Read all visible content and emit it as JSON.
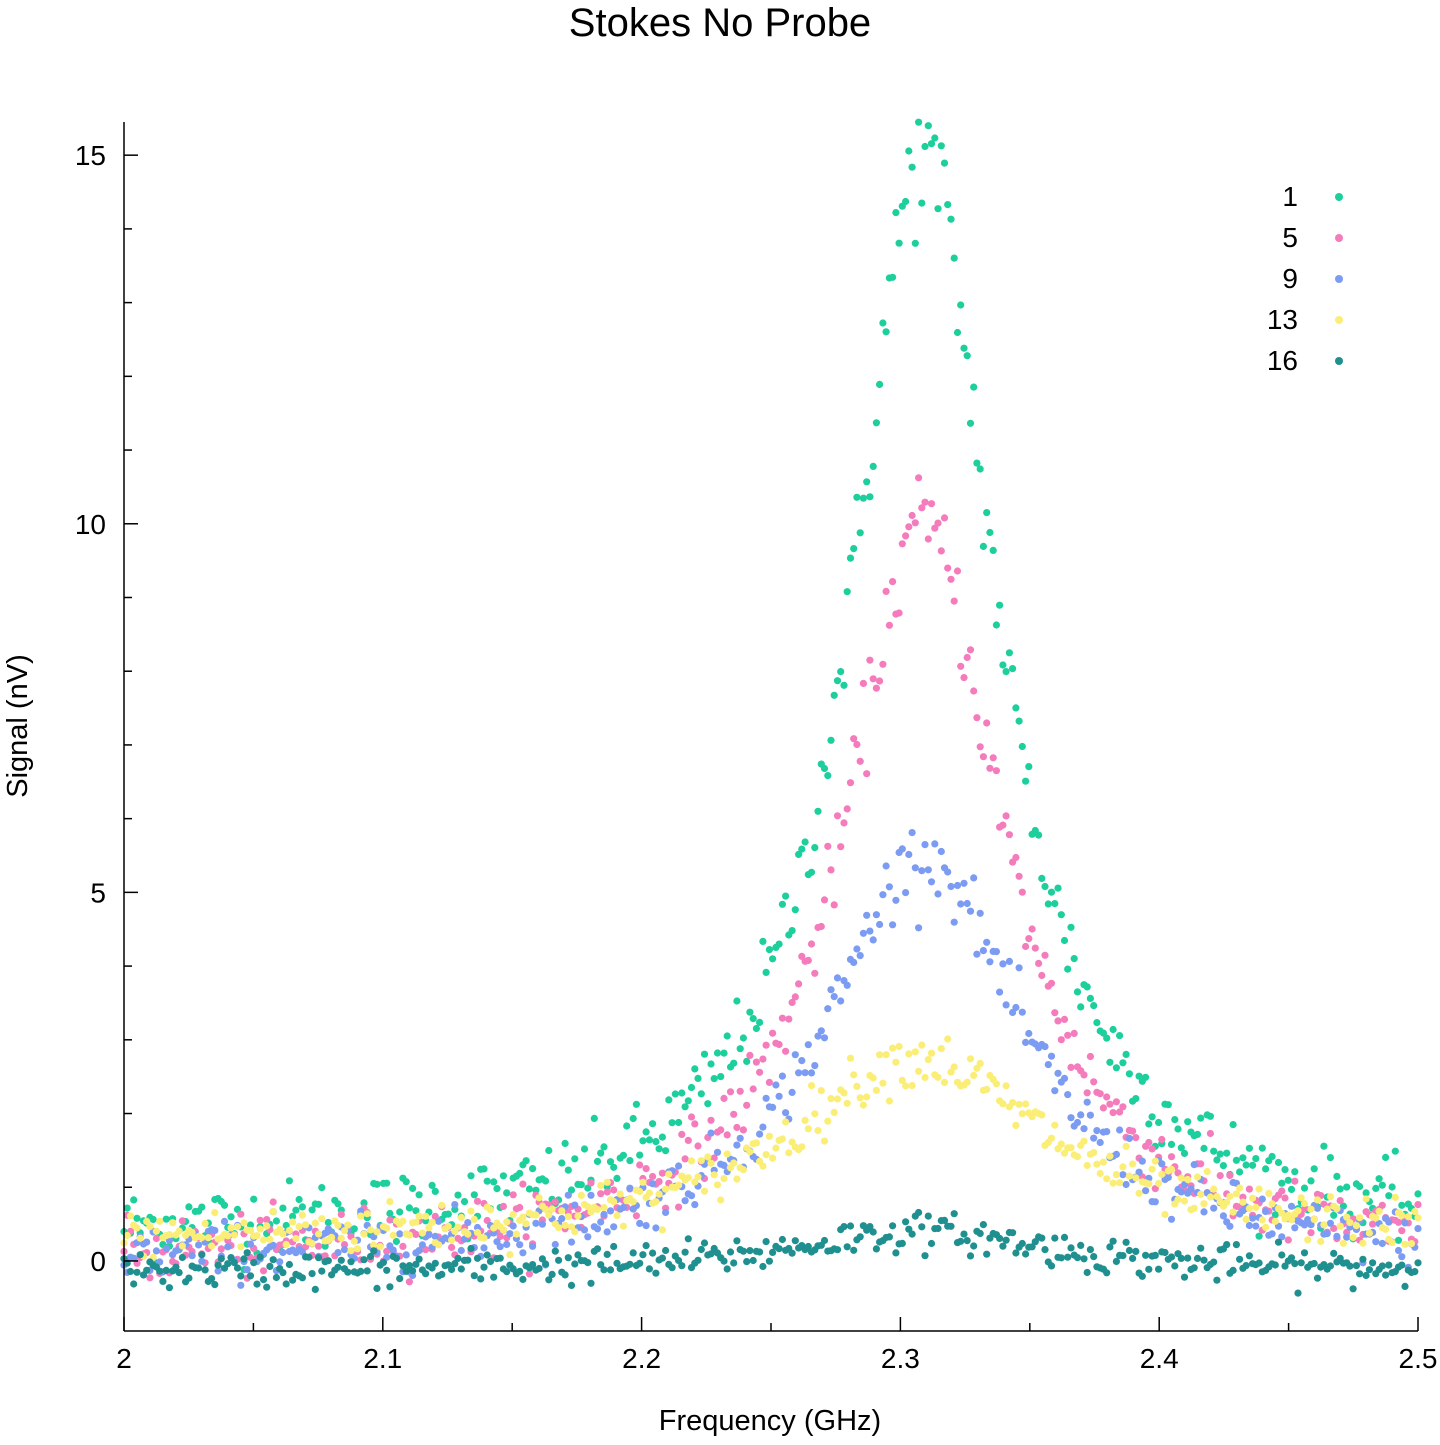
{
  "chart_data": {
    "type": "scatter",
    "title": "Stokes No Probe",
    "xlabel": "Frequency (GHz)",
    "ylabel": "Signal (nV)",
    "xlim": [
      2.0,
      2.5
    ],
    "ylim": [
      -0.95,
      15.45
    ],
    "x_ticks": [
      2.0,
      2.1,
      2.2,
      2.3,
      2.4,
      2.5
    ],
    "x_tick_labels": [
      "2",
      "2.1",
      "2.2",
      "2.3",
      "2.4",
      "2.5"
    ],
    "y_ticks": [
      0,
      5,
      10,
      15
    ],
    "y_tick_labels": [
      "0",
      "5",
      "10",
      "15"
    ],
    "grid": false,
    "legend_position": "top-right",
    "x_sampling": {
      "start": 2.0,
      "end": 2.5,
      "count": 400
    },
    "series": [
      {
        "name": "1",
        "color": "#1dcf9c",
        "peak_x": 2.309,
        "peak_y": 14.7,
        "hwhm": 0.034,
        "baseline": 0.3,
        "noise": 0.45
      },
      {
        "name": "5",
        "color": "#f57cbc",
        "peak_x": 2.309,
        "peak_y": 10.0,
        "hwhm": 0.037,
        "baseline": 0.0,
        "noise": 0.38
      },
      {
        "name": "9",
        "color": "#7b9cf2",
        "peak_x": 2.309,
        "peak_y": 5.5,
        "hwhm": 0.045,
        "baseline": 0.0,
        "noise": 0.33
      },
      {
        "name": "13",
        "color": "#fbee77",
        "peak_x": 2.307,
        "peak_y": 2.5,
        "hwhm": 0.06,
        "baseline": 0.25,
        "noise": 0.3
      },
      {
        "name": "16",
        "color": "#1f8f8f",
        "peak_x": 2.307,
        "peak_y": 0.55,
        "hwhm": 0.06,
        "baseline": -0.15,
        "noise": 0.22
      }
    ]
  }
}
